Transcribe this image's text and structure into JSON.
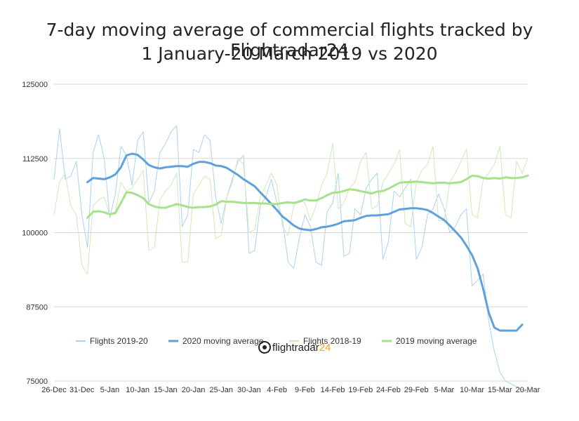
{
  "chart_data": {
    "type": "line",
    "title_lines": [
      "7-day moving average of commercial flights tracked by Flightradar24",
      "1 January-20 March 2019 vs 2020"
    ],
    "x_tick_labels": [
      "26-Dec",
      "31-Dec",
      "5-Jan",
      "10-Jan",
      "15-Jan",
      "20-Jan",
      "25-Jan",
      "30-Jan",
      "4-Feb",
      "9-Feb",
      "14-Feb",
      "19-Feb",
      "24-Feb",
      "29-Feb",
      "5-Mar",
      "10-Mar",
      "15-Mar",
      "20-Mar"
    ],
    "y_ticks": [
      75000,
      87500,
      100000,
      112500,
      125000
    ],
    "ylim": [
      75000,
      125000
    ],
    "x_range_days": [
      0,
      85
    ],
    "grid": "horizontal",
    "legend_position": "bottom-inside",
    "series": [
      {
        "name": "Flights 2019-20",
        "color": "#a9d3f0",
        "width": 1,
        "x": [
          0,
          1,
          2,
          3,
          4,
          5,
          6,
          7,
          8,
          9,
          10,
          11,
          12,
          13,
          14,
          15,
          16,
          17,
          18,
          19,
          20,
          21,
          22,
          23,
          24,
          25,
          26,
          27,
          28,
          29,
          30,
          31,
          32,
          33,
          34,
          35,
          36,
          37,
          38,
          39,
          40,
          41,
          42,
          43,
          44,
          45,
          46,
          47,
          48,
          49,
          50,
          51,
          52,
          53,
          54,
          55,
          56,
          57,
          58,
          59,
          60,
          61,
          62,
          63,
          64,
          65,
          66,
          67,
          68,
          69,
          70,
          71,
          72,
          73,
          74,
          75,
          76,
          77,
          78,
          79,
          80,
          81,
          82,
          83,
          84,
          85
        ],
        "values": [
          109000,
          117500,
          109000,
          109500,
          112000,
          103000,
          97500,
          113500,
          116500,
          112500,
          102500,
          106500,
          114500,
          113000,
          108000,
          115500,
          117000,
          105000,
          107000,
          113500,
          115000,
          117000,
          118000,
          101000,
          103000,
          114000,
          113500,
          116500,
          115500,
          106000,
          101500,
          106000,
          109000,
          112000,
          113000,
          96500,
          97000,
          104500,
          106000,
          109000,
          105000,
          102000,
          95000,
          94000,
          99000,
          103000,
          101000,
          95000,
          94500,
          103500,
          105000,
          110000,
          96000,
          96500,
          104000,
          103000,
          107500,
          109000,
          110000,
          95500,
          98500,
          107000,
          106000,
          107500,
          109000,
          95500,
          97500,
          103000,
          104000,
          106500,
          104000,
          100000,
          101000,
          103000,
          104000,
          91000,
          92000,
          93000,
          85000,
          80000,
          76500,
          75000,
          74500,
          74000,
          73500,
          73000
        ]
      },
      {
        "name": "2020 moving average",
        "color": "#5da1dd",
        "width": 3,
        "x": [
          6,
          7,
          8,
          9,
          10,
          11,
          12,
          13,
          14,
          15,
          16,
          17,
          18,
          19,
          20,
          21,
          22,
          23,
          24,
          25,
          26,
          27,
          28,
          29,
          30,
          31,
          32,
          33,
          34,
          35,
          36,
          37,
          38,
          39,
          40,
          41,
          42,
          43,
          44,
          45,
          46,
          47,
          48,
          49,
          50,
          51,
          52,
          53,
          54,
          55,
          56,
          57,
          58,
          59,
          60,
          61,
          62,
          63,
          64,
          65,
          66,
          67,
          68,
          69,
          70,
          71,
          72,
          73,
          74,
          75,
          76,
          77,
          78,
          79,
          80,
          81,
          82,
          83,
          84
        ],
        "values": [
          108500,
          109200,
          109100,
          109000,
          109300,
          109800,
          111000,
          113000,
          113300,
          113100,
          112300,
          111400,
          111000,
          110800,
          111000,
          111100,
          111200,
          111200,
          111100,
          111600,
          111900,
          111900,
          111700,
          111300,
          111200,
          110900,
          110300,
          109700,
          109000,
          108400,
          107800,
          106800,
          105800,
          104800,
          103800,
          102700,
          102000,
          101200,
          100700,
          100500,
          100400,
          100600,
          100900,
          101000,
          101200,
          101500,
          101900,
          102000,
          102100,
          102500,
          102800,
          102900,
          102900,
          103000,
          103100,
          103500,
          103900,
          104000,
          104100,
          104100,
          104000,
          103800,
          103300,
          102700,
          102100,
          101200,
          100200,
          99200,
          97800,
          96200,
          94000,
          90500,
          86500,
          84000,
          83500,
          83500,
          83500,
          83500,
          84500
        ]
      },
      {
        "name": "Flights 2018-19",
        "color": "#cdebb5",
        "width": 1,
        "x": [
          0,
          1,
          2,
          3,
          4,
          5,
          6,
          7,
          8,
          9,
          10,
          11,
          12,
          13,
          14,
          15,
          16,
          17,
          18,
          19,
          20,
          21,
          22,
          23,
          24,
          25,
          26,
          27,
          28,
          29,
          30,
          31,
          32,
          33,
          34,
          35,
          36,
          37,
          38,
          39,
          40,
          41,
          42,
          43,
          44,
          45,
          46,
          47,
          48,
          49,
          50,
          51,
          52,
          53,
          54,
          55,
          56,
          57,
          58,
          59,
          60,
          61,
          62,
          63,
          64,
          65,
          66,
          67,
          68,
          69,
          70,
          71,
          72,
          73,
          74,
          75,
          76,
          77,
          78,
          79,
          80,
          81,
          82,
          83,
          84,
          85
        ],
        "values": [
          103000,
          108500,
          110000,
          104500,
          103000,
          94500,
          93000,
          104500,
          105500,
          106000,
          103000,
          103500,
          108500,
          107000,
          107500,
          109000,
          110500,
          97000,
          97500,
          105500,
          107000,
          108000,
          110000,
          95000,
          95000,
          106500,
          108000,
          109500,
          109000,
          99000,
          99500,
          106000,
          108500,
          112500,
          111500,
          100000,
          100500,
          106000,
          108000,
          110000,
          108000,
          101000,
          99500,
          104500,
          105500,
          105000,
          102000,
          104500,
          108000,
          110000,
          115000,
          104000,
          105000,
          107500,
          108500,
          112000,
          113500,
          104000,
          104500,
          108500,
          110000,
          111500,
          114000,
          101500,
          101000,
          108500,
          110500,
          111500,
          114500,
          102000,
          102000,
          108500,
          110000,
          112000,
          114000,
          103000,
          102500,
          109000,
          110000,
          111500,
          114500,
          103000,
          102500,
          112000,
          110000,
          112500
        ]
      },
      {
        "name": "2019 moving average",
        "color": "#a6e28c",
        "width": 3,
        "x": [
          6,
          7,
          8,
          9,
          10,
          11,
          12,
          13,
          14,
          15,
          16,
          17,
          18,
          19,
          20,
          21,
          22,
          23,
          24,
          25,
          26,
          27,
          28,
          29,
          30,
          31,
          32,
          33,
          34,
          35,
          36,
          37,
          38,
          39,
          40,
          41,
          42,
          43,
          44,
          45,
          46,
          47,
          48,
          49,
          50,
          51,
          52,
          53,
          54,
          55,
          56,
          57,
          58,
          59,
          60,
          61,
          62,
          63,
          64,
          65,
          66,
          67,
          68,
          69,
          70,
          71,
          72,
          73,
          74,
          75,
          76,
          77,
          78,
          79,
          80,
          81,
          82,
          83,
          84,
          85
        ],
        "values": [
          102500,
          103500,
          103600,
          103400,
          103100,
          103300,
          105000,
          106800,
          106700,
          106300,
          105800,
          104800,
          104400,
          104200,
          104200,
          104500,
          104800,
          104600,
          104300,
          104200,
          104300,
          104300,
          104400,
          104700,
          105300,
          105200,
          105200,
          105100,
          105000,
          105000,
          105000,
          104900,
          104900,
          104800,
          104800,
          105000,
          105100,
          105000,
          105200,
          105600,
          105400,
          105400,
          105800,
          106300,
          106700,
          106800,
          107000,
          107300,
          107200,
          107000,
          106800,
          106600,
          106900,
          107000,
          107400,
          107900,
          108400,
          108500,
          108500,
          108600,
          108500,
          108400,
          108300,
          108400,
          108400,
          108300,
          108400,
          108500,
          109000,
          109600,
          109500,
          109200,
          109100,
          109200,
          109100,
          109300,
          109200,
          109200,
          109300,
          109600
        ]
      }
    ]
  },
  "logo": {
    "text_main": "flightradar",
    "text_suffix": "24",
    "colors": {
      "main": "#222222",
      "suffix": "#f5a623"
    }
  }
}
